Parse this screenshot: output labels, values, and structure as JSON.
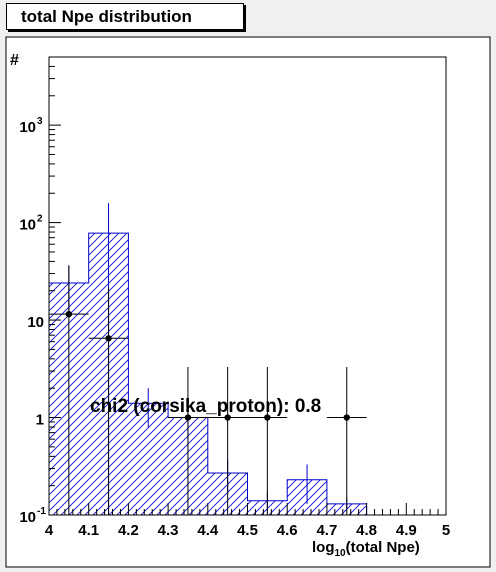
{
  "chart_data": {
    "type": "bar",
    "title": "total Npe distribution",
    "xlabel_prefix": "log",
    "xlabel_sub": "10",
    "xlabel_suffix": "(total Npe)",
    "ylabel": "#",
    "annotation": "chi2 (corsika_proton): 0.8",
    "xlim": [
      4.0,
      5.0
    ],
    "ylim": [
      0.1,
      5000
    ],
    "yscale": "log",
    "x_ticks": [
      "4",
      "4.1",
      "4.2",
      "4.3",
      "4.4",
      "4.5",
      "4.6",
      "4.7",
      "4.8",
      "4.9",
      "5"
    ],
    "y_ticks": [
      {
        "value": 0.1,
        "base": "10",
        "exp": "-1"
      },
      {
        "value": 1,
        "base": "1",
        "exp": ""
      },
      {
        "value": 10,
        "base": "10",
        "exp": ""
      },
      {
        "value": 100,
        "base": "10",
        "exp": "2"
      },
      {
        "value": 1000,
        "base": "10",
        "exp": "3"
      }
    ],
    "histogram": {
      "name": "corsika_proton",
      "color": "#0000cc",
      "hatch": "diagonal",
      "bins": [
        {
          "x0": 4.0,
          "x1": 4.1,
          "value": 24,
          "err": 12
        },
        {
          "x0": 4.1,
          "x1": 4.2,
          "value": 78,
          "err": 80
        },
        {
          "x0": 4.2,
          "x1": 4.3,
          "value": 1.4,
          "err": 0.6
        },
        {
          "x0": 4.3,
          "x1": 4.4,
          "value": 1.0,
          "err": 0.4
        },
        {
          "x0": 4.4,
          "x1": 4.5,
          "value": 0.27,
          "err": 0.1
        },
        {
          "x0": 4.5,
          "x1": 4.6,
          "value": 0.14,
          "err": 0.03
        },
        {
          "x0": 4.6,
          "x1": 4.7,
          "value": 0.23,
          "err": 0.1
        },
        {
          "x0": 4.7,
          "x1": 4.8,
          "value": 0.13,
          "err": 0.02
        }
      ]
    },
    "data_points": {
      "color": "#000000",
      "points": [
        {
          "x": 4.05,
          "y": 11.5,
          "yerr_low": 11.4,
          "yerr_high": 25
        },
        {
          "x": 4.15,
          "y": 6.5,
          "yerr_low": 6.4,
          "yerr_high": 15
        },
        {
          "x": 4.35,
          "y": 1.0,
          "yerr_low": 0.999,
          "yerr_high": 2.3
        },
        {
          "x": 4.45,
          "y": 1.0,
          "yerr_low": 0.999,
          "yerr_high": 2.3
        },
        {
          "x": 4.55,
          "y": 1.0,
          "yerr_low": 0.999,
          "yerr_high": 2.3
        },
        {
          "x": 4.75,
          "y": 1.0,
          "yerr_low": 0.999,
          "yerr_high": 2.3
        }
      ]
    }
  }
}
